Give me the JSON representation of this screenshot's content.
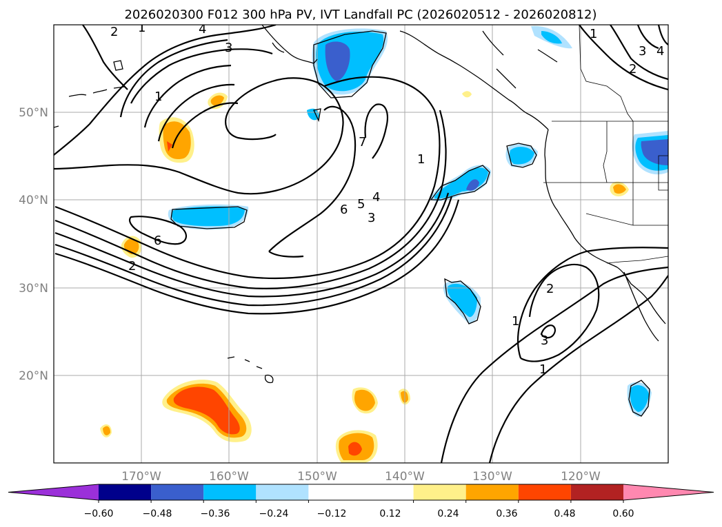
{
  "chart_data": {
    "type": "contour",
    "title": "2026020300 F012 300 hPa PV, IVT Landfall PC (2026020512 - 2026020812)",
    "x_axis": {
      "label_ticks": [
        "170°W",
        "160°W",
        "150°W",
        "140°W",
        "130°W",
        "120°W"
      ],
      "tick_lons": [
        -170,
        -160,
        -150,
        -140,
        -130,
        -120
      ],
      "range_lon": [
        -180,
        -110
      ]
    },
    "y_axis": {
      "label_ticks": [
        "50°N",
        "40°N",
        "30°N",
        "20°N"
      ],
      "tick_lats": [
        50,
        40,
        30,
        20
      ],
      "range_lat": [
        10,
        60
      ]
    },
    "contour_labels": [
      "2",
      "1",
      "4",
      "3",
      "1",
      "2",
      "3",
      "4",
      "1",
      "7",
      "1",
      "6",
      "5",
      "4",
      "3",
      "6",
      "2",
      "2",
      "1",
      "3",
      "1"
    ],
    "colorbar": {
      "ticks": [
        "−0.60",
        "−0.48",
        "−0.36",
        "−0.24",
        "−0.12",
        "0.12",
        "0.24",
        "0.36",
        "0.48",
        "0.60"
      ],
      "levels": [
        -0.72,
        -0.6,
        -0.48,
        -0.36,
        -0.24,
        -0.12,
        0.12,
        0.24,
        0.36,
        0.48,
        0.6,
        0.72
      ],
      "colors": [
        "#9b30d9",
        "#00008b",
        "#3a5fcd",
        "#00bfff",
        "#b0e2ff",
        "#ffffff",
        "#fff08a",
        "#ffa500",
        "#ff4500",
        "#b22222",
        "#ff88b0"
      ]
    }
  }
}
